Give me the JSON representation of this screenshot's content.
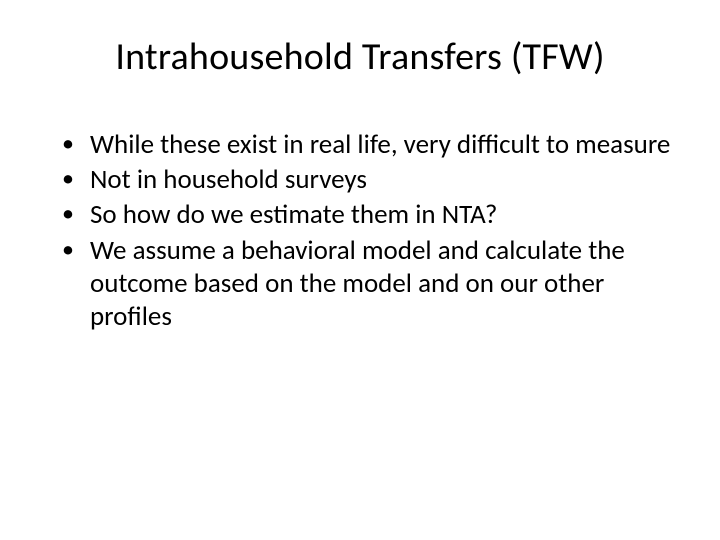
{
  "slide": {
    "title": "Intrahousehold Transfers (TFW)",
    "bullets": [
      "While these exist in real life, very difficult to measure",
      "Not in household surveys",
      "So how do we estimate them in NTA?",
      "We assume a behavioral model and calculate the outcome based on the model and on our other profiles"
    ],
    "colors": {
      "background": "#ffffff",
      "text": "#000000"
    },
    "typography": {
      "title_fontsize_pt": 38,
      "body_fontsize_pt": 27,
      "font_family": "Calibri"
    }
  }
}
